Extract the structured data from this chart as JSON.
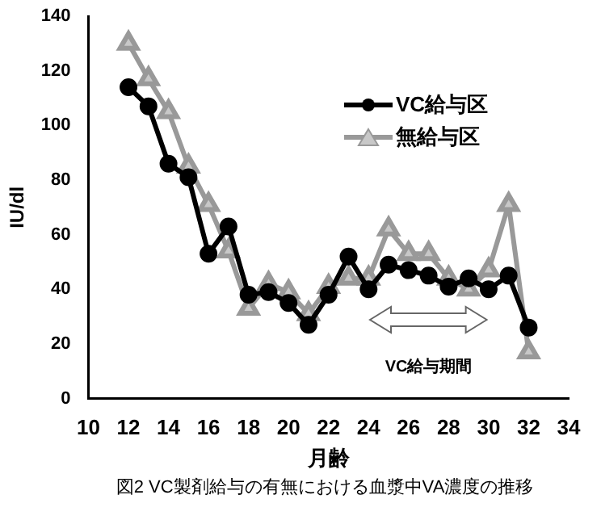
{
  "chart_data": {
    "type": "line",
    "xlabel": "月齢",
    "ylabel": "IU/dl",
    "x": [
      12,
      13,
      14,
      15,
      16,
      17,
      18,
      19,
      20,
      21,
      22,
      23,
      24,
      25,
      26,
      27,
      28,
      29,
      30,
      31,
      32
    ],
    "series": [
      {
        "name": "VC給与区",
        "color": "#000000",
        "marker": "circle",
        "values": [
          114,
          107,
          86,
          81,
          53,
          63,
          38,
          39,
          35,
          27,
          38,
          52,
          40,
          49,
          47,
          45,
          41,
          44,
          40,
          45,
          26
        ]
      },
      {
        "name": "無給与区",
        "color": "#999999",
        "marker": "triangle",
        "values": [
          130,
          117,
          105,
          85,
          71,
          54,
          33,
          42,
          39,
          31,
          41,
          44,
          44,
          62,
          53,
          53,
          44,
          40,
          47,
          71,
          17
        ]
      }
    ],
    "xlim": [
      10,
      34
    ],
    "xticks": [
      10,
      12,
      14,
      16,
      18,
      20,
      22,
      24,
      26,
      28,
      30,
      32,
      34
    ],
    "ylim": [
      0,
      140
    ],
    "yticks": [
      0,
      20,
      40,
      60,
      80,
      100,
      120,
      140
    ],
    "grid": false,
    "legend": "top right",
    "annotations": [
      "VC給与期間",
      "図2 VC製剤給与の有無における血漿中VA濃度の推移"
    ]
  }
}
